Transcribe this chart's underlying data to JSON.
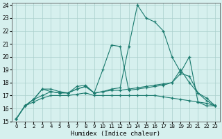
{
  "xlabel": "Humidex (Indice chaleur)",
  "xlim": [
    -0.5,
    23.5
  ],
  "ylim": [
    15,
    24.2
  ],
  "xticks": [
    0,
    1,
    2,
    3,
    4,
    5,
    6,
    7,
    8,
    9,
    10,
    11,
    12,
    13,
    14,
    15,
    16,
    17,
    18,
    19,
    20,
    21,
    22,
    23
  ],
  "yticks": [
    15,
    16,
    17,
    18,
    19,
    20,
    21,
    22,
    23,
    24
  ],
  "background_color": "#d6f0ee",
  "grid_color": "#aacfcc",
  "line_color": "#1a7a6e",
  "lines": [
    [
      15.2,
      16.2,
      16.7,
      17.5,
      17.5,
      17.3,
      17.2,
      17.7,
      17.8,
      17.2,
      17.3,
      17.5,
      17.6,
      20.8,
      24.0,
      23.0,
      22.7,
      22.0,
      20.0,
      18.8,
      20.0,
      16.5,
      16.2,
      16.2
    ],
    [
      15.2,
      16.2,
      16.7,
      17.5,
      17.3,
      17.2,
      17.2,
      17.5,
      17.7,
      17.2,
      19.0,
      20.9,
      20.8,
      17.4,
      17.5,
      17.6,
      17.7,
      17.8,
      18.0,
      19.0,
      18.0,
      17.2,
      16.6,
      16.2
    ],
    [
      15.2,
      16.2,
      16.7,
      17.0,
      17.3,
      17.2,
      17.2,
      17.5,
      17.7,
      17.2,
      17.3,
      17.4,
      17.4,
      17.5,
      17.6,
      17.7,
      17.8,
      17.9,
      18.0,
      18.7,
      18.5,
      17.2,
      16.8,
      16.2
    ],
    [
      15.2,
      16.2,
      16.5,
      16.8,
      17.0,
      17.0,
      17.0,
      17.1,
      17.2,
      17.0,
      17.0,
      17.0,
      17.0,
      17.0,
      17.0,
      17.0,
      17.0,
      16.9,
      16.8,
      16.7,
      16.6,
      16.5,
      16.4,
      16.2
    ]
  ]
}
